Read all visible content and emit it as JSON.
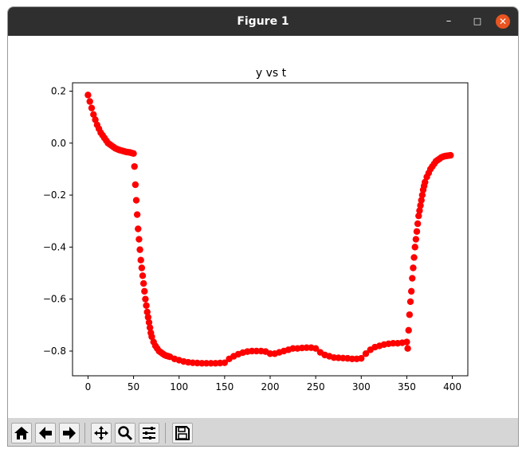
{
  "window": {
    "title": "Figure 1",
    "minimize_glyph": "–",
    "maximize_glyph": "□",
    "close_glyph": "✕"
  },
  "toolbar": {
    "buttons": [
      {
        "name": "home-icon"
      },
      {
        "name": "back-icon"
      },
      {
        "name": "forward-icon"
      },
      {
        "name": "pan-icon"
      },
      {
        "name": "zoom-icon"
      },
      {
        "name": "configure-subplots-icon"
      },
      {
        "name": "save-icon"
      }
    ]
  },
  "chart_data": {
    "type": "scatter",
    "title": "y vs t",
    "xlabel": "",
    "ylabel": "",
    "xlim": [
      -17,
      417
    ],
    "ylim": [
      -0.895,
      0.232
    ],
    "xticks": [
      0,
      50,
      100,
      150,
      200,
      250,
      300,
      350,
      400
    ],
    "yticks": [
      0.2,
      0.0,
      -0.2,
      -0.4,
      -0.6,
      -0.8
    ],
    "ytick_labels": [
      "0.2",
      "0.0",
      "−0.2",
      "−0.4",
      "−0.6",
      "−0.8"
    ],
    "grid": false,
    "legend": "none",
    "marker_color": "#ff0000",
    "series": [
      {
        "x": [
          0,
          2,
          4,
          6,
          8,
          10,
          12,
          14,
          16,
          18,
          20,
          22,
          24,
          26,
          28,
          30,
          32,
          34,
          36,
          38,
          40,
          42,
          44,
          46,
          48,
          50,
          51,
          52,
          53,
          54,
          55,
          56,
          57,
          58,
          59,
          60,
          61,
          62,
          63,
          64,
          65,
          66,
          67,
          68,
          69,
          70,
          72,
          74,
          76,
          78,
          80,
          82,
          84,
          86,
          88,
          90,
          95,
          100,
          105,
          110,
          115,
          120,
          125,
          130,
          135,
          140,
          145,
          150,
          155,
          160,
          165,
          170,
          175,
          180,
          185,
          190,
          195,
          200,
          205,
          210,
          215,
          220,
          225,
          230,
          235,
          240,
          245,
          250,
          255,
          260,
          265,
          270,
          275,
          280,
          285,
          290,
          295,
          300,
          305,
          310,
          315,
          320,
          325,
          330,
          335,
          340,
          345,
          350,
          351,
          352,
          353,
          354,
          355,
          356,
          357,
          358,
          359,
          360,
          361,
          362,
          363,
          364,
          365,
          366,
          367,
          368,
          369,
          370,
          372,
          374,
          376,
          378,
          380,
          382,
          384,
          386,
          388,
          390,
          392,
          394,
          396,
          398
        ],
        "y": [
          0.185,
          0.16,
          0.135,
          0.11,
          0.09,
          0.07,
          0.055,
          0.04,
          0.03,
          0.02,
          0.01,
          0.0,
          -0.005,
          -0.01,
          -0.015,
          -0.02,
          -0.023,
          -0.026,
          -0.028,
          -0.03,
          -0.032,
          -0.034,
          -0.035,
          -0.036,
          -0.038,
          -0.04,
          -0.09,
          -0.16,
          -0.22,
          -0.275,
          -0.33,
          -0.37,
          -0.41,
          -0.45,
          -0.48,
          -0.51,
          -0.54,
          -0.57,
          -0.6,
          -0.625,
          -0.65,
          -0.67,
          -0.69,
          -0.71,
          -0.73,
          -0.745,
          -0.765,
          -0.78,
          -0.79,
          -0.8,
          -0.805,
          -0.81,
          -0.815,
          -0.818,
          -0.82,
          -0.822,
          -0.83,
          -0.835,
          -0.84,
          -0.843,
          -0.845,
          -0.846,
          -0.847,
          -0.847,
          -0.847,
          -0.847,
          -0.846,
          -0.845,
          -0.83,
          -0.82,
          -0.812,
          -0.806,
          -0.802,
          -0.8,
          -0.8,
          -0.8,
          -0.802,
          -0.81,
          -0.81,
          -0.805,
          -0.8,
          -0.795,
          -0.79,
          -0.79,
          -0.788,
          -0.787,
          -0.787,
          -0.79,
          -0.805,
          -0.815,
          -0.82,
          -0.825,
          -0.826,
          -0.827,
          -0.828,
          -0.83,
          -0.83,
          -0.828,
          -0.81,
          -0.795,
          -0.785,
          -0.78,
          -0.775,
          -0.772,
          -0.77,
          -0.77,
          -0.768,
          -0.765,
          -0.79,
          -0.72,
          -0.66,
          -0.61,
          -0.57,
          -0.52,
          -0.48,
          -0.44,
          -0.4,
          -0.37,
          -0.34,
          -0.31,
          -0.28,
          -0.26,
          -0.24,
          -0.22,
          -0.2,
          -0.18,
          -0.165,
          -0.15,
          -0.13,
          -0.115,
          -0.1,
          -0.09,
          -0.08,
          -0.07,
          -0.065,
          -0.06,
          -0.055,
          -0.052,
          -0.05,
          -0.049,
          -0.048,
          -0.047
        ]
      }
    ]
  }
}
